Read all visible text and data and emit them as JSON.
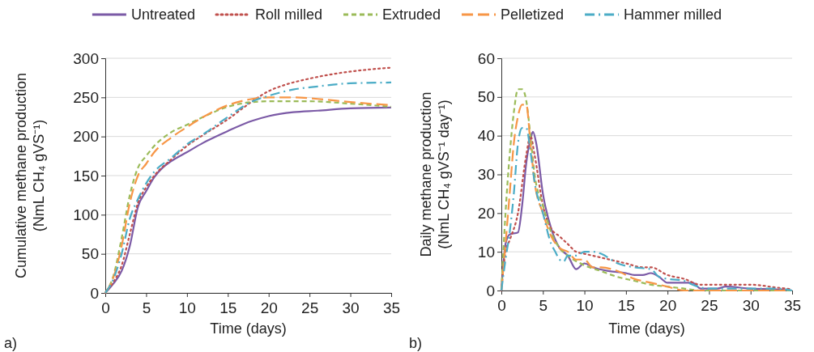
{
  "chart_data": [
    {
      "type": "line",
      "xlabel": "Time (days)",
      "ylabel": "Cumulative methane production\n(NmL CH₄ gVS⁻¹)",
      "annotations": [
        "a)"
      ],
      "xlim": [
        0,
        35
      ],
      "ylim": [
        0,
        300
      ],
      "xticks": [
        0,
        5,
        10,
        15,
        20,
        25,
        30,
        35
      ],
      "yticks": [
        0,
        50,
        100,
        150,
        200,
        250,
        300
      ],
      "grid": "y",
      "legend": "top",
      "series": [
        {
          "name": "Untreated",
          "color": "#7b5aa6",
          "line_style": "solid",
          "x": [
            0,
            1,
            2,
            3,
            4,
            5,
            6,
            7,
            8,
            10,
            12,
            15,
            18,
            20,
            23,
            26,
            30,
            35
          ],
          "values": [
            0,
            12,
            28,
            60,
            110,
            130,
            148,
            160,
            168,
            180,
            192,
            207,
            220,
            226,
            231,
            233,
            236,
            237
          ]
        },
        {
          "name": "Roll milled",
          "color": "#c0504d",
          "line_style": "dotted",
          "x": [
            0,
            1,
            2,
            3,
            4,
            5,
            6,
            8,
            10,
            12,
            15,
            18,
            20,
            22,
            25,
            28,
            30,
            35
          ],
          "values": [
            0,
            14,
            35,
            75,
            115,
            135,
            150,
            170,
            188,
            202,
            222,
            245,
            258,
            266,
            274,
            280,
            283,
            288
          ]
        },
        {
          "name": "Extruded",
          "color": "#9bbb59",
          "line_style": "dashed",
          "x": [
            0,
            1,
            2,
            3,
            4,
            5,
            6,
            8,
            10,
            12,
            15,
            18,
            20,
            25,
            30,
            35
          ],
          "values": [
            0,
            22,
            70,
            125,
            160,
            175,
            188,
            205,
            215,
            225,
            238,
            244,
            245,
            245,
            242,
            238
          ]
        },
        {
          "name": "Pelletized",
          "color": "#f79646",
          "line_style": "longdash",
          "x": [
            0,
            1,
            2,
            3,
            4,
            5,
            6,
            8,
            10,
            12,
            15,
            18,
            20,
            23,
            26,
            30,
            35
          ],
          "values": [
            0,
            20,
            60,
            115,
            150,
            165,
            180,
            198,
            212,
            225,
            240,
            248,
            250,
            250,
            248,
            244,
            240
          ]
        },
        {
          "name": "Hammer milled",
          "color": "#4bacc6",
          "line_style": "dashdot",
          "x": [
            0,
            1,
            2,
            3,
            4,
            5,
            6,
            8,
            10,
            12,
            15,
            18,
            20,
            23,
            26,
            30,
            35
          ],
          "values": [
            0,
            18,
            50,
            95,
            120,
            140,
            155,
            172,
            190,
            203,
            225,
            245,
            252,
            260,
            264,
            268,
            269
          ]
        }
      ]
    },
    {
      "type": "line",
      "xlabel": "Time (days)",
      "ylabel": "Daily methane production\n(NmL CH₄ gVS⁻¹ day⁻¹)",
      "annotations": [
        "b)"
      ],
      "xlim": [
        0,
        35
      ],
      "ylim": [
        0,
        60
      ],
      "xticks": [
        0,
        5,
        10,
        15,
        20,
        25,
        30,
        35
      ],
      "yticks": [
        0,
        10,
        20,
        30,
        40,
        50,
        60
      ],
      "grid": "y",
      "series": [
        {
          "color": "#7b5aa6",
          "line_style": "solid",
          "x": [
            0,
            0.5,
            1,
            2,
            2.5,
            3,
            3.5,
            3.8,
            4.2,
            5,
            6,
            7,
            8,
            9,
            10,
            11,
            13,
            15,
            16,
            17,
            18,
            19,
            20,
            21,
            22,
            23,
            24,
            26,
            27,
            30,
            33,
            35
          ],
          "values": [
            0,
            12,
            14.5,
            15,
            22,
            33,
            39,
            41,
            38,
            25,
            16,
            11,
            9,
            5.5,
            7,
            6,
            5,
            4.5,
            4,
            4,
            4.5,
            3.5,
            2,
            2,
            2,
            2,
            0.5,
            0.5,
            1,
            0.5,
            0.3,
            0
          ]
        },
        {
          "color": "#c0504d",
          "line_style": "dotted",
          "x": [
            0,
            0.5,
            1,
            2,
            3,
            3.5,
            4,
            5,
            6,
            7,
            8,
            9,
            10,
            12,
            15,
            17,
            18,
            20,
            22,
            24,
            26,
            30,
            33,
            35
          ],
          "values": [
            0,
            10,
            13,
            20,
            35,
            40,
            35,
            22,
            16,
            14,
            12,
            10,
            9.5,
            8.5,
            7,
            6,
            6,
            4,
            3,
            1.5,
            1.5,
            1.5,
            0.8,
            0.3
          ]
        },
        {
          "color": "#9bbb59",
          "line_style": "dashed",
          "x": [
            0,
            0.5,
            1,
            1.5,
            2,
            2.5,
            3,
            3.5,
            4,
            5,
            6,
            7,
            8,
            10,
            12,
            14,
            16,
            18,
            20,
            22,
            24,
            35
          ],
          "values": [
            0,
            20,
            35,
            46,
            52,
            52,
            49,
            40,
            30,
            22,
            15,
            11,
            9,
            6.5,
            5,
            3.5,
            2.5,
            1.5,
            1,
            0.5,
            0,
            0
          ]
        },
        {
          "color": "#f79646",
          "line_style": "longdash",
          "x": [
            0,
            0.5,
            1,
            1.5,
            2,
            2.5,
            3,
            3.5,
            4,
            5,
            6,
            7,
            8,
            9,
            10,
            11,
            12,
            14,
            16,
            18,
            20,
            22,
            35
          ],
          "values": [
            0,
            12,
            25,
            38,
            45,
            48,
            48,
            38,
            28,
            20,
            14,
            11,
            10,
            8,
            8,
            6,
            6,
            5,
            3,
            2,
            1,
            0,
            0
          ]
        },
        {
          "color": "#4bacc6",
          "line_style": "dashdot",
          "x": [
            0,
            0.5,
            1,
            1.5,
            2,
            2.5,
            3,
            3.5,
            4,
            5,
            6,
            6.5,
            7,
            7.5,
            8,
            9,
            10,
            11,
            12,
            14,
            16,
            18,
            19,
            20,
            22,
            23,
            25,
            30,
            33,
            35
          ],
          "values": [
            0,
            8,
            15,
            25,
            38,
            42,
            42,
            36,
            28,
            20,
            12,
            10,
            8,
            7.5,
            9,
            9,
            10,
            10,
            9.5,
            7,
            6,
            5.5,
            3.5,
            3,
            2.5,
            1.5,
            0.5,
            0.5,
            0.5,
            0
          ]
        }
      ]
    }
  ]
}
